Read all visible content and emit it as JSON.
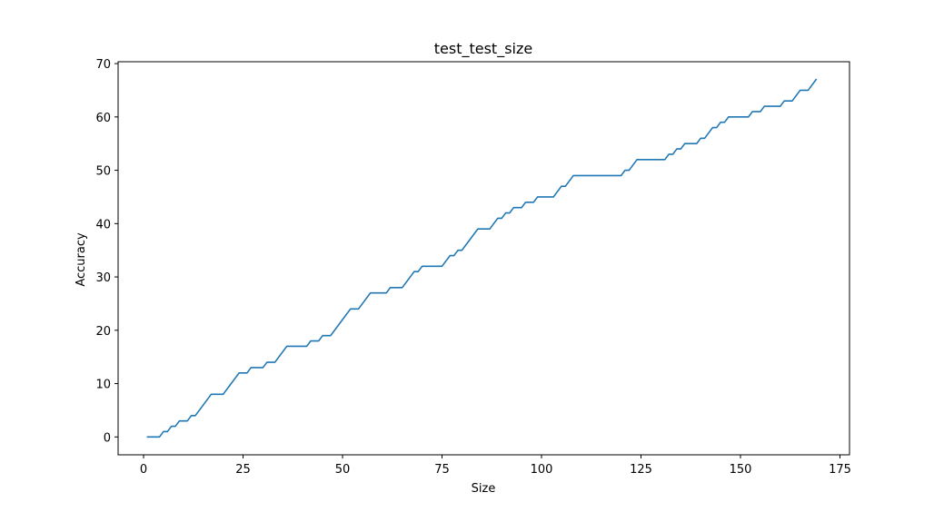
{
  "chart_data": {
    "type": "line",
    "title": "test_test_size",
    "xlabel": "Size",
    "ylabel": "Accuracy",
    "xlim": [
      -6.4,
      177.4
    ],
    "ylim": [
      -3.35,
      70.35
    ],
    "xticks": [
      0,
      25,
      50,
      75,
      100,
      125,
      150,
      175
    ],
    "yticks": [
      0,
      10,
      20,
      30,
      40,
      50,
      60,
      70
    ],
    "grid": false,
    "legend": "none",
    "series": [
      {
        "color": "#1f77b4",
        "points": [
          [
            1,
            0
          ],
          [
            4,
            0
          ],
          [
            5,
            1
          ],
          [
            6,
            1
          ],
          [
            7,
            2
          ],
          [
            8,
            2
          ],
          [
            9,
            3
          ],
          [
            11,
            3
          ],
          [
            12,
            4
          ],
          [
            13,
            4
          ],
          [
            17,
            8
          ],
          [
            20,
            8
          ],
          [
            24,
            12
          ],
          [
            26,
            12
          ],
          [
            27,
            13
          ],
          [
            30,
            13
          ],
          [
            31,
            14
          ],
          [
            33,
            14
          ],
          [
            36,
            17
          ],
          [
            41,
            17
          ],
          [
            42,
            18
          ],
          [
            44,
            18
          ],
          [
            45,
            19
          ],
          [
            47,
            19
          ],
          [
            52,
            24
          ],
          [
            54,
            24
          ],
          [
            57,
            27
          ],
          [
            61,
            27
          ],
          [
            62,
            28
          ],
          [
            65,
            28
          ],
          [
            68,
            31
          ],
          [
            69,
            31
          ],
          [
            70,
            32
          ],
          [
            75,
            32
          ],
          [
            77,
            34
          ],
          [
            78,
            34
          ],
          [
            79,
            35
          ],
          [
            80,
            35
          ],
          [
            84,
            39
          ],
          [
            87,
            39
          ],
          [
            89,
            41
          ],
          [
            90,
            41
          ],
          [
            91,
            42
          ],
          [
            92,
            42
          ],
          [
            93,
            43
          ],
          [
            95,
            43
          ],
          [
            96,
            44
          ],
          [
            98,
            44
          ],
          [
            99,
            45
          ],
          [
            103,
            45
          ],
          [
            105,
            47
          ],
          [
            106,
            47
          ],
          [
            108,
            49
          ],
          [
            120,
            49
          ],
          [
            121,
            50
          ],
          [
            122,
            50
          ],
          [
            124,
            52
          ],
          [
            131,
            52
          ],
          [
            132,
            53
          ],
          [
            133,
            53
          ],
          [
            134,
            54
          ],
          [
            135,
            54
          ],
          [
            136,
            55
          ],
          [
            139,
            55
          ],
          [
            140,
            56
          ],
          [
            141,
            56
          ],
          [
            143,
            58
          ],
          [
            144,
            58
          ],
          [
            145,
            59
          ],
          [
            146,
            59
          ],
          [
            147,
            60
          ],
          [
            152,
            60
          ],
          [
            153,
            61
          ],
          [
            155,
            61
          ],
          [
            156,
            62
          ],
          [
            160,
            62
          ],
          [
            161,
            63
          ],
          [
            163,
            63
          ],
          [
            165,
            65
          ],
          [
            167,
            65
          ],
          [
            169,
            67
          ]
        ]
      }
    ]
  }
}
